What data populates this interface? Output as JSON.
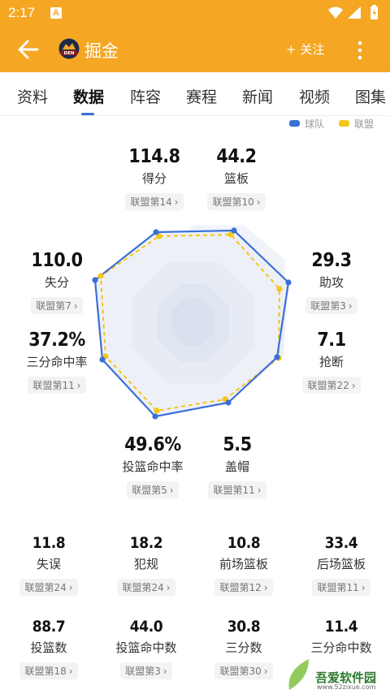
{
  "status_bar": {
    "time": "2:17",
    "notif_letter": "A"
  },
  "header": {
    "team_name": "掘金",
    "logo_text": "DEN",
    "follow_label": "+ 关注"
  },
  "tabs": [
    {
      "label": "资料",
      "active": false
    },
    {
      "label": "数据",
      "active": true
    },
    {
      "label": "阵容",
      "active": false
    },
    {
      "label": "赛程",
      "active": false
    },
    {
      "label": "新闻",
      "active": false
    },
    {
      "label": "视频",
      "active": false
    },
    {
      "label": "图集",
      "active": false
    }
  ],
  "legend": [
    {
      "label": "球队",
      "color": "#3B6FD8"
    },
    {
      "label": "联盟",
      "color": "#F5C518"
    }
  ],
  "radar_stats": {
    "points": {
      "value": "114.8",
      "label": "得分",
      "rank": "联盟第14"
    },
    "rebounds": {
      "value": "44.2",
      "label": "篮板",
      "rank": "联盟第10"
    },
    "assists": {
      "value": "29.3",
      "label": "助攻",
      "rank": "联盟第3"
    },
    "steals": {
      "value": "7.1",
      "label": "抢断",
      "rank": "联盟第22"
    },
    "blocks": {
      "value": "5.5",
      "label": "盖帽",
      "rank": "联盟第11"
    },
    "fg_pct": {
      "value": "49.6%",
      "label": "投篮命中率",
      "rank": "联盟第5"
    },
    "three_pct": {
      "value": "37.2%",
      "label": "三分命中率",
      "rank": "联盟第11"
    },
    "opp_points": {
      "value": "110.0",
      "label": "失分",
      "rank": "联盟第7"
    }
  },
  "grid_stats": [
    {
      "value": "11.8",
      "label": "失误",
      "rank": "联盟第24"
    },
    {
      "value": "18.2",
      "label": "犯规",
      "rank": "联盟第24"
    },
    {
      "value": "10.8",
      "label": "前场篮板",
      "rank": "联盟第12"
    },
    {
      "value": "33.4",
      "label": "后场篮板",
      "rank": "联盟第11"
    },
    {
      "value": "88.7",
      "label": "投篮数",
      "rank": "联盟第18"
    },
    {
      "value": "44.0",
      "label": "投篮命中数",
      "rank": "联盟第3"
    },
    {
      "value": "30.8",
      "label": "三分数",
      "rank": "联盟第30"
    },
    {
      "value": "11.4",
      "label": "三分命中数",
      "rank": ""
    }
  ],
  "watermark": {
    "text": "吾爱软件园",
    "sub": "www.52zixue.com"
  },
  "colors": {
    "accent": "#F5A623",
    "team": "#3B6FD8",
    "league": "#F5C518"
  }
}
